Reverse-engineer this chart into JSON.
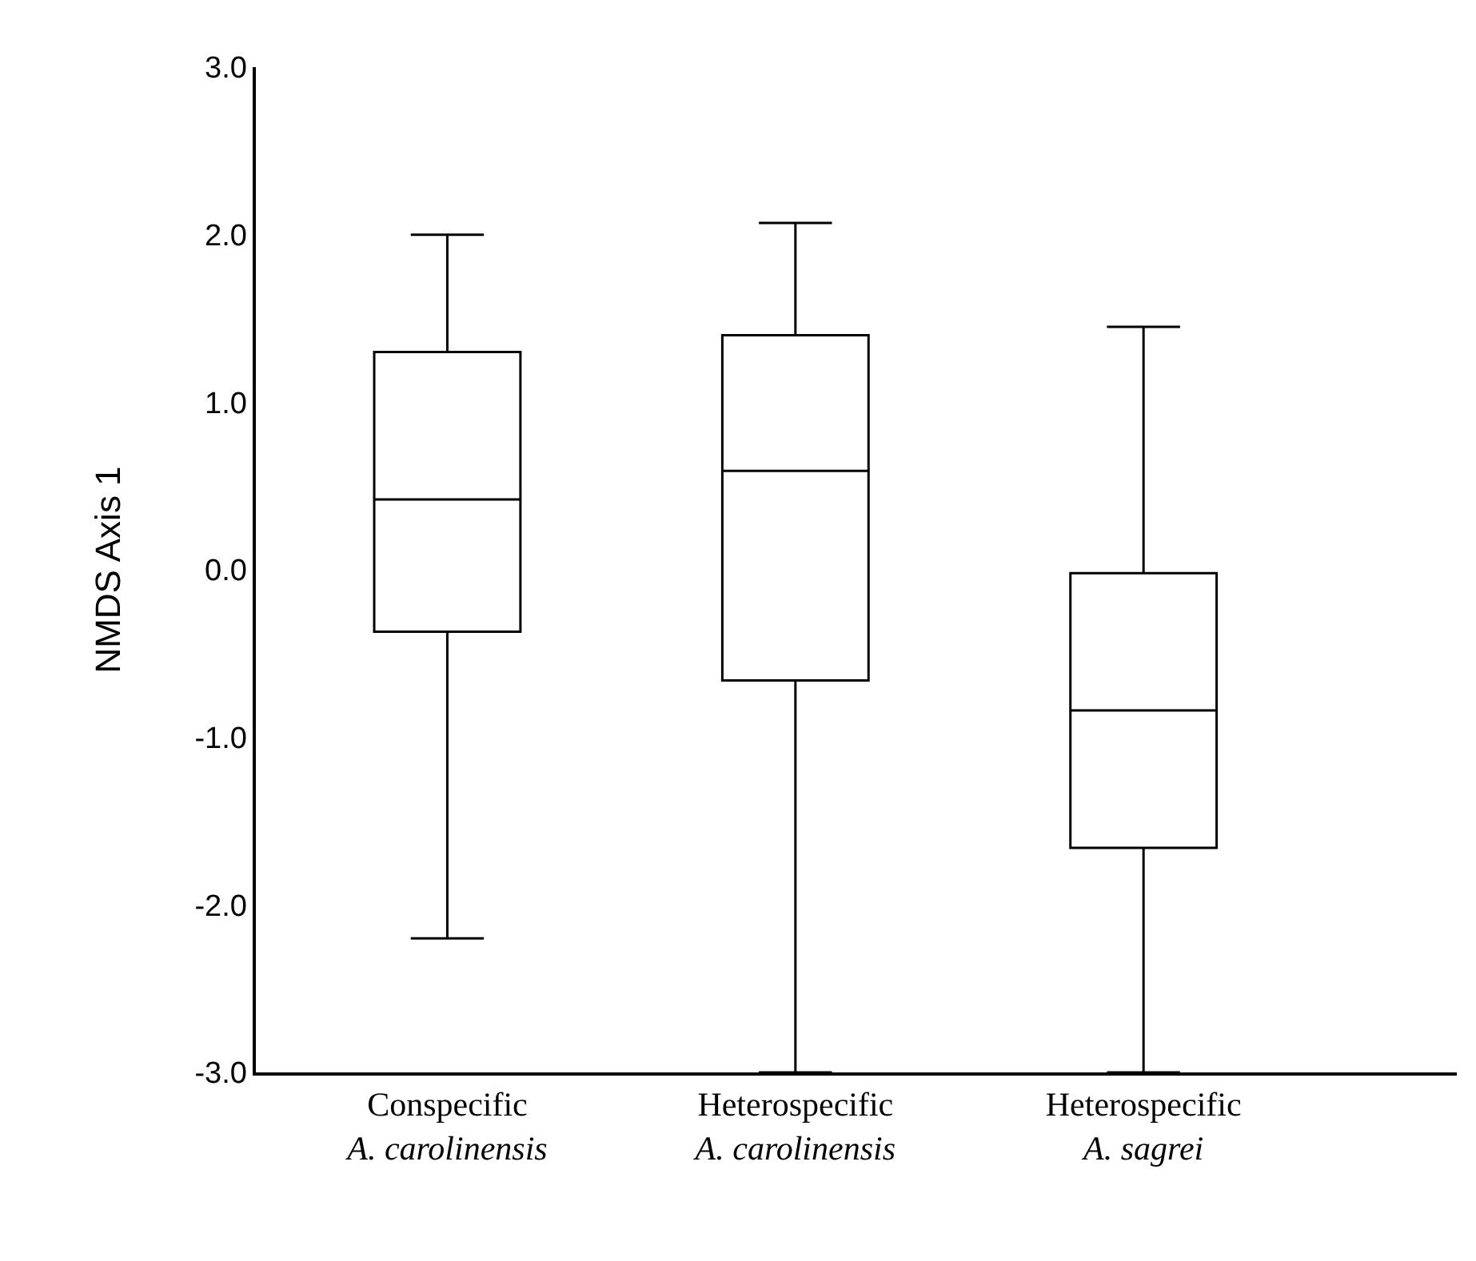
{
  "chart_data": {
    "type": "box",
    "ylabel": "NMDS Axis 1",
    "categories": [
      "Conspecific\nA. carolinensis",
      "Heterospecific\nA. carolinensis",
      "Heterospecific\nA. sagrei"
    ],
    "boxes": [
      {
        "low": -2.2,
        "q1": -0.37,
        "median": 0.42,
        "q3": 1.3,
        "high": 2.0
      },
      {
        "low": -3.0,
        "q1": -0.66,
        "median": 0.59,
        "q3": 1.4,
        "high": 2.07
      },
      {
        "low": -3.0,
        "q1": -1.66,
        "median": -0.84,
        "q3": -0.02,
        "high": 1.45
      }
    ],
    "color": "#000000",
    "ylim": [
      -3.0,
      3.0
    ],
    "yticks": [
      {
        "value": -3,
        "label": "-3.0"
      },
      {
        "value": -2,
        "label": "-2.0"
      },
      {
        "value": -1,
        "label": "-1.0"
      },
      {
        "value": 0,
        "label": "0.0"
      },
      {
        "value": 1,
        "label": "1.0"
      },
      {
        "value": 2,
        "label": "2.0"
      },
      {
        "value": 3,
        "label": "3.0"
      }
    ],
    "grid": false
  }
}
